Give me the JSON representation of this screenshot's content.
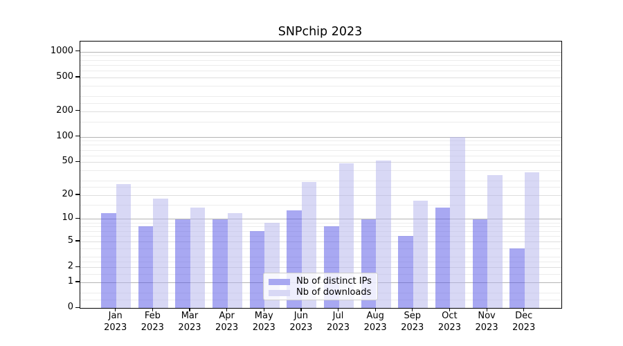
{
  "title_text": "SNPchip 2023",
  "chart_data": {
    "type": "bar",
    "title": "SNPchip 2023",
    "categories": [
      "Jan 2023",
      "Feb 2023",
      "Mar 2023",
      "Apr 2023",
      "May 2023",
      "Jun 2023",
      "Jul 2023",
      "Aug 2023",
      "Sep 2023",
      "Oct 2023",
      "Nov 2023",
      "Dec 2023"
    ],
    "month_labels": [
      "Jan",
      "Feb",
      "Mar",
      "Apr",
      "May",
      "Jun",
      "Jul",
      "Aug",
      "Sep",
      "Oct",
      "Nov",
      "Dec"
    ],
    "year_label": "2023",
    "series": [
      {
        "name": "Nb of distinct IPs",
        "color": "#a8a8f1",
        "values": [
          12,
          8,
          10,
          10,
          7,
          13,
          8,
          10,
          6,
          14,
          10,
          4
        ]
      },
      {
        "name": "Nb of downloads",
        "color": "#d8d8f5",
        "values": [
          27,
          18,
          14,
          12,
          9,
          29,
          48,
          52,
          17,
          100,
          35,
          38
        ]
      }
    ],
    "y_axis": {
      "scale": "log10(1+v)",
      "tick_values": [
        0,
        1,
        2,
        5,
        10,
        20,
        50,
        100,
        200,
        500,
        1000
      ],
      "tick_labels": [
        "0",
        "1",
        "2",
        "5",
        "10",
        "20",
        "50",
        "100",
        "200",
        "500",
        "1000"
      ],
      "minor_gridline_values": [
        0.25,
        0.5,
        1.5,
        2.5,
        3,
        4,
        6,
        7,
        8,
        9,
        15,
        25,
        30,
        40,
        60,
        70,
        80,
        90,
        150,
        250,
        300,
        400,
        600,
        700,
        800,
        900
      ],
      "max_value": 1320
    },
    "grid": true,
    "legend_position": "lower center"
  },
  "legend": {
    "items": [
      {
        "label": "Nb of distinct IPs",
        "color": "#a8a8f1"
      },
      {
        "label": "Nb of downloads",
        "color": "#d8d8f5"
      }
    ]
  },
  "colors": {
    "bar_ips_rgba": "rgba(81,81,229,0.5)",
    "bar_downloads_rgba": "rgba(177,177,235,0.5)",
    "grid_major": "#b4b4b4",
    "grid_mid": "#dddddd",
    "grid_minor": "#ececec",
    "spine": "#000000",
    "legend_border": "#cccccc"
  }
}
